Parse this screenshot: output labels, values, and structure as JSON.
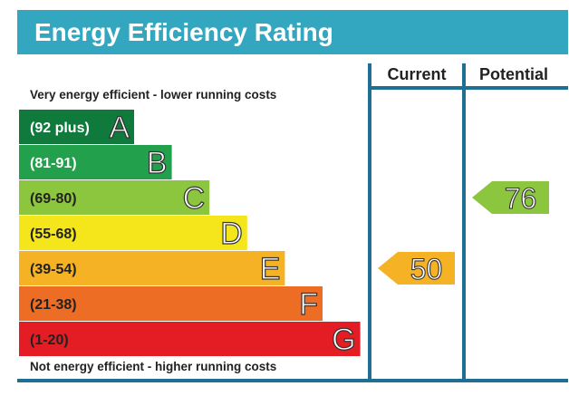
{
  "header": {
    "title": "Energy Efficiency Rating",
    "bg_color": "#34a7c0",
    "text_color": "#ffffff"
  },
  "columns": {
    "current_label": "Current",
    "potential_label": "Potential",
    "border_color": "#1f6f95"
  },
  "labels": {
    "top_note": "Very energy efficient - lower running costs",
    "bottom_note": "Not energy efficient - higher running costs"
  },
  "chart_data": {
    "type": "bar",
    "categories": [
      "A",
      "B",
      "C",
      "D",
      "E",
      "F",
      "G"
    ],
    "bands": [
      {
        "letter": "A",
        "range": "(92 plus)",
        "color": "#0f7a3c",
        "text_color": "#ffffff"
      },
      {
        "letter": "B",
        "range": "(81-91)",
        "color": "#22a04b",
        "text_color": "#ffffff"
      },
      {
        "letter": "C",
        "range": "(69-80)",
        "color": "#8cc63f",
        "text_color": "#222222"
      },
      {
        "letter": "D",
        "range": "(55-68)",
        "color": "#f4e61b",
        "text_color": "#222222"
      },
      {
        "letter": "E",
        "range": "(39-54)",
        "color": "#f5b225",
        "text_color": "#222222"
      },
      {
        "letter": "F",
        "range": "(21-38)",
        "color": "#ed6d24",
        "text_color": "#222222"
      },
      {
        "letter": "G",
        "range": "(1-20)",
        "color": "#e31d23",
        "text_color": "#222222"
      }
    ],
    "current": {
      "value": "50",
      "band": "E",
      "color": "#f5b225"
    },
    "potential": {
      "value": "76",
      "band": "C",
      "color": "#8cc63f"
    }
  }
}
